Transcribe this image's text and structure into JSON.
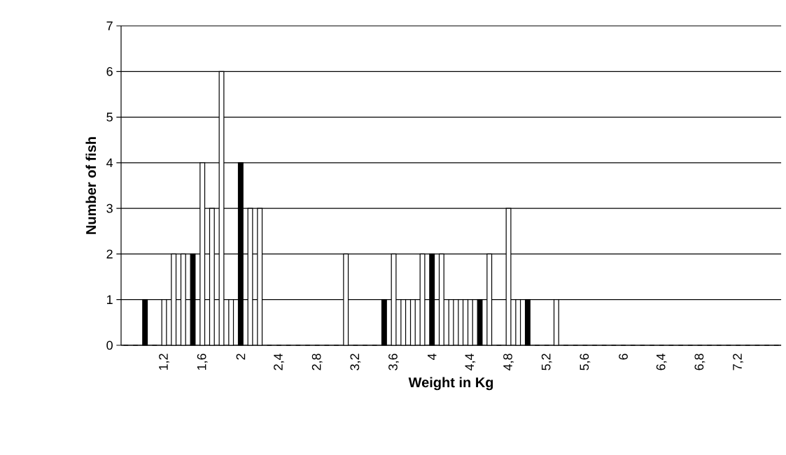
{
  "chart_data": {
    "type": "bar",
    "xlabel": "Weight in Kg",
    "ylabel": "Number of fish",
    "categories": [
      null,
      null,
      null,
      null,
      "1,2",
      null,
      null,
      null,
      "1,6",
      null,
      null,
      null,
      "2",
      null,
      null,
      null,
      "2,4",
      null,
      null,
      null,
      "2,8",
      null,
      null,
      null,
      "3,2",
      null,
      null,
      null,
      "3,6",
      null,
      null,
      null,
      "4",
      null,
      null,
      null,
      "4,4",
      null,
      null,
      null,
      "4,8",
      null,
      null,
      null,
      "5,2",
      null,
      null,
      null,
      "5,6",
      null,
      null,
      null,
      "6",
      null,
      null,
      null,
      "6,4",
      null,
      null,
      null,
      "6,8",
      null,
      null,
      null,
      "7,2",
      null,
      null,
      null,
      null
    ],
    "values": [
      0,
      0,
      1,
      0,
      1,
      2,
      2,
      2,
      4,
      3,
      6,
      1,
      4,
      3,
      3,
      0,
      0,
      0,
      0,
      0,
      0,
      0,
      0,
      2,
      0,
      0,
      0,
      1,
      2,
      1,
      1,
      2,
      2,
      2,
      1,
      1,
      1,
      1,
      2,
      0,
      3,
      1,
      1,
      0,
      0,
      1,
      0,
      0,
      0,
      0,
      0,
      0,
      0,
      0,
      0,
      0,
      0,
      0,
      0,
      0,
      0,
      0,
      0,
      0,
      0,
      0,
      0,
      0,
      0
    ],
    "colors": [
      "#ffffff",
      "#ffffff",
      "#000000",
      "#ffffff",
      "#ffffff",
      "#ffffff",
      "#ffffff",
      "#000000",
      "#ffffff",
      "#ffffff",
      "#ffffff",
      "#ffffff",
      "#000000",
      "#ffffff",
      "#ffffff",
      "#ffffff",
      "#ffffff",
      "#ffffff",
      "#ffffff",
      "#ffffff",
      "#ffffff",
      "#ffffff",
      "#ffffff",
      "#ffffff",
      "#ffffff",
      "#ffffff",
      "#ffffff",
      "#000000",
      "#ffffff",
      "#ffffff",
      "#ffffff",
      "#ffffff",
      "#000000",
      "#ffffff",
      "#ffffff",
      "#ffffff",
      "#ffffff",
      "#000000",
      "#ffffff",
      "#ffffff",
      "#ffffff",
      "#ffffff",
      "#000000",
      "#ffffff",
      "#ffffff",
      "#ffffff",
      "#ffffff",
      "#ffffff",
      "#ffffff",
      "#ffffff",
      "#ffffff",
      "#ffffff",
      "#ffffff",
      "#ffffff",
      "#ffffff",
      "#ffffff",
      "#ffffff",
      "#ffffff",
      "#ffffff",
      "#ffffff",
      "#ffffff",
      "#ffffff",
      "#ffffff",
      "#ffffff",
      "#ffffff",
      "#ffffff",
      "#ffffff",
      "#ffffff",
      "#ffffff"
    ],
    "ylim": [
      0,
      7
    ],
    "yticks": [
      0,
      1,
      2,
      3,
      4,
      5,
      6,
      7
    ],
    "grid": "y"
  }
}
